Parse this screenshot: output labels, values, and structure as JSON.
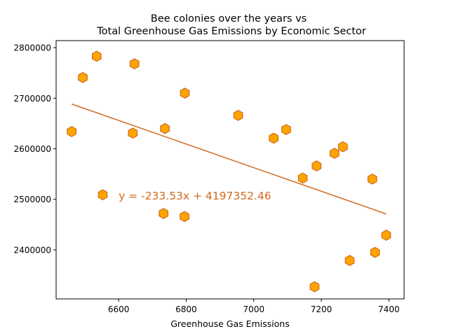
{
  "chart_data": {
    "type": "scatter",
    "title_lines": [
      "Bee colonies over the years vs",
      "Total Greenhouse Gas Emissions by Economic Sector"
    ],
    "xlabel": "Greenhouse Gas Emissions",
    "ylabel": "",
    "xlim": [
      6415,
      7445
    ],
    "ylim": [
      2303000,
      2814000
    ],
    "x_ticks": [
      {
        "value": 6600,
        "label": "6600"
      },
      {
        "value": 6800,
        "label": "6800"
      },
      {
        "value": 7000,
        "label": "7000"
      },
      {
        "value": 7200,
        "label": "7200"
      },
      {
        "value": 7400,
        "label": "7400"
      }
    ],
    "y_ticks": [
      {
        "value": 2400000,
        "label": "2400000"
      },
      {
        "value": 2500000,
        "label": "2500000"
      },
      {
        "value": 2600000,
        "label": "2600000"
      },
      {
        "value": 2700000,
        "label": "2700000"
      },
      {
        "value": 2800000,
        "label": "2800000"
      }
    ],
    "points": [
      {
        "x": 6461,
        "y": 2634000
      },
      {
        "x": 6494,
        "y": 2741000
      },
      {
        "x": 6535,
        "y": 2783000
      },
      {
        "x": 6553,
        "y": 2509000
      },
      {
        "x": 6642,
        "y": 2631000
      },
      {
        "x": 6647,
        "y": 2768000
      },
      {
        "x": 6733,
        "y": 2472000
      },
      {
        "x": 6737,
        "y": 2640000
      },
      {
        "x": 6795,
        "y": 2466000
      },
      {
        "x": 6796,
        "y": 2710000
      },
      {
        "x": 6954,
        "y": 2666000
      },
      {
        "x": 7059,
        "y": 2621000
      },
      {
        "x": 7096,
        "y": 2638000
      },
      {
        "x": 7145,
        "y": 2542000
      },
      {
        "x": 7180,
        "y": 2327000
      },
      {
        "x": 7186,
        "y": 2566000
      },
      {
        "x": 7239,
        "y": 2591000
      },
      {
        "x": 7264,
        "y": 2604000
      },
      {
        "x": 7284,
        "y": 2379000
      },
      {
        "x": 7351,
        "y": 2540000
      },
      {
        "x": 7359,
        "y": 2395000
      },
      {
        "x": 7392,
        "y": 2429000
      }
    ],
    "trendline": {
      "slope": -233.53,
      "intercept": 4197352.46,
      "x_range": [
        6461,
        7392
      ],
      "label": "y = -233.53x + 4197352.46",
      "label_anchor": {
        "x": 6600,
        "y": 2507000
      }
    },
    "marker": "hexagon",
    "colors": {
      "marker_fill": "#ffa500",
      "marker_edge": "#d2691e",
      "trendline": "#d2691e",
      "label": "#d2691e"
    },
    "grid": false,
    "legend": "none"
  }
}
